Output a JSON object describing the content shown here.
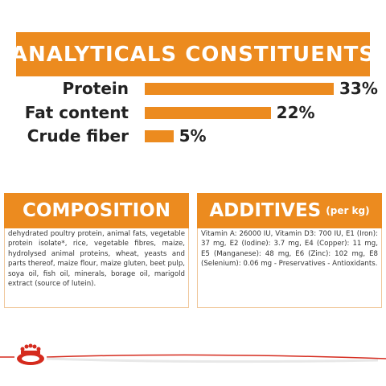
{
  "chart_data": {
    "type": "bar",
    "orientation": "horizontal",
    "title": "ANALYTICALS CONSTITUENTS",
    "categories": [
      "Protein",
      "Fat content",
      "Crude fiber"
    ],
    "values": [
      33,
      22,
      5
    ],
    "value_labels": [
      "33%",
      "22%",
      "5%"
    ],
    "color": "#ec8b1f"
  },
  "composition": {
    "title": "COMPOSITION",
    "text": "dehydrated poultry protein, animal fats, vegetable protein isolate*, rice, vegetable fibres, maize, hydrolysed animal proteins, wheat, yeasts and parts thereof, maize flour, maize gluten, beet pulp, soya oil, fish oil, minerals, borage oil, marigold extract (source of lutein)."
  },
  "additives": {
    "title": "ADDITIVES",
    "unit": "(per kg)",
    "text": "Vitamin A: 26000 IU, Vitamin D3: 700 IU, E1 (Iron): 37 mg, E2 (Iodine): 3.7 mg, E4 (Copper): 11 mg, E5 (Manganese): 48 mg, E6 (Zinc): 102 mg, E8 (Selenium): 0.06 mg - Preservatives - Antioxidants."
  }
}
